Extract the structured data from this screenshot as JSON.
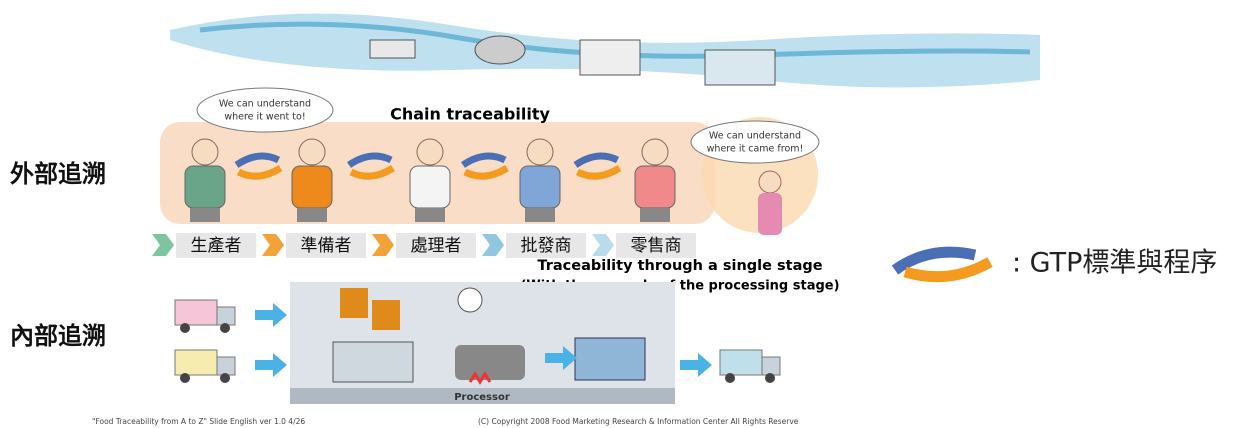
{
  "labels": {
    "external": "外部追溯",
    "internal": "內部追溯"
  },
  "chain": {
    "title": "Chain traceability",
    "bubble_left": [
      "We can understand",
      "where it went to!"
    ],
    "bubble_right": [
      "We can understand",
      "where it came from!"
    ],
    "stages": [
      "生產者",
      "準備者",
      "處理者",
      "批發商",
      "零售商"
    ]
  },
  "single_stage": {
    "title": "Traceability through a single stage",
    "subtitle": "(With the example of the processing stage)",
    "processor": "Processor"
  },
  "legend": {
    "text": ": GTP標準與程序"
  },
  "footer": {
    "left": "\"Food Traceability from A to Z\"  Slide  English ver 1.0  4/26",
    "right": "(C)  Copyright 2008  Food Marketing Research & Information Center   All Rights Reserve"
  }
}
